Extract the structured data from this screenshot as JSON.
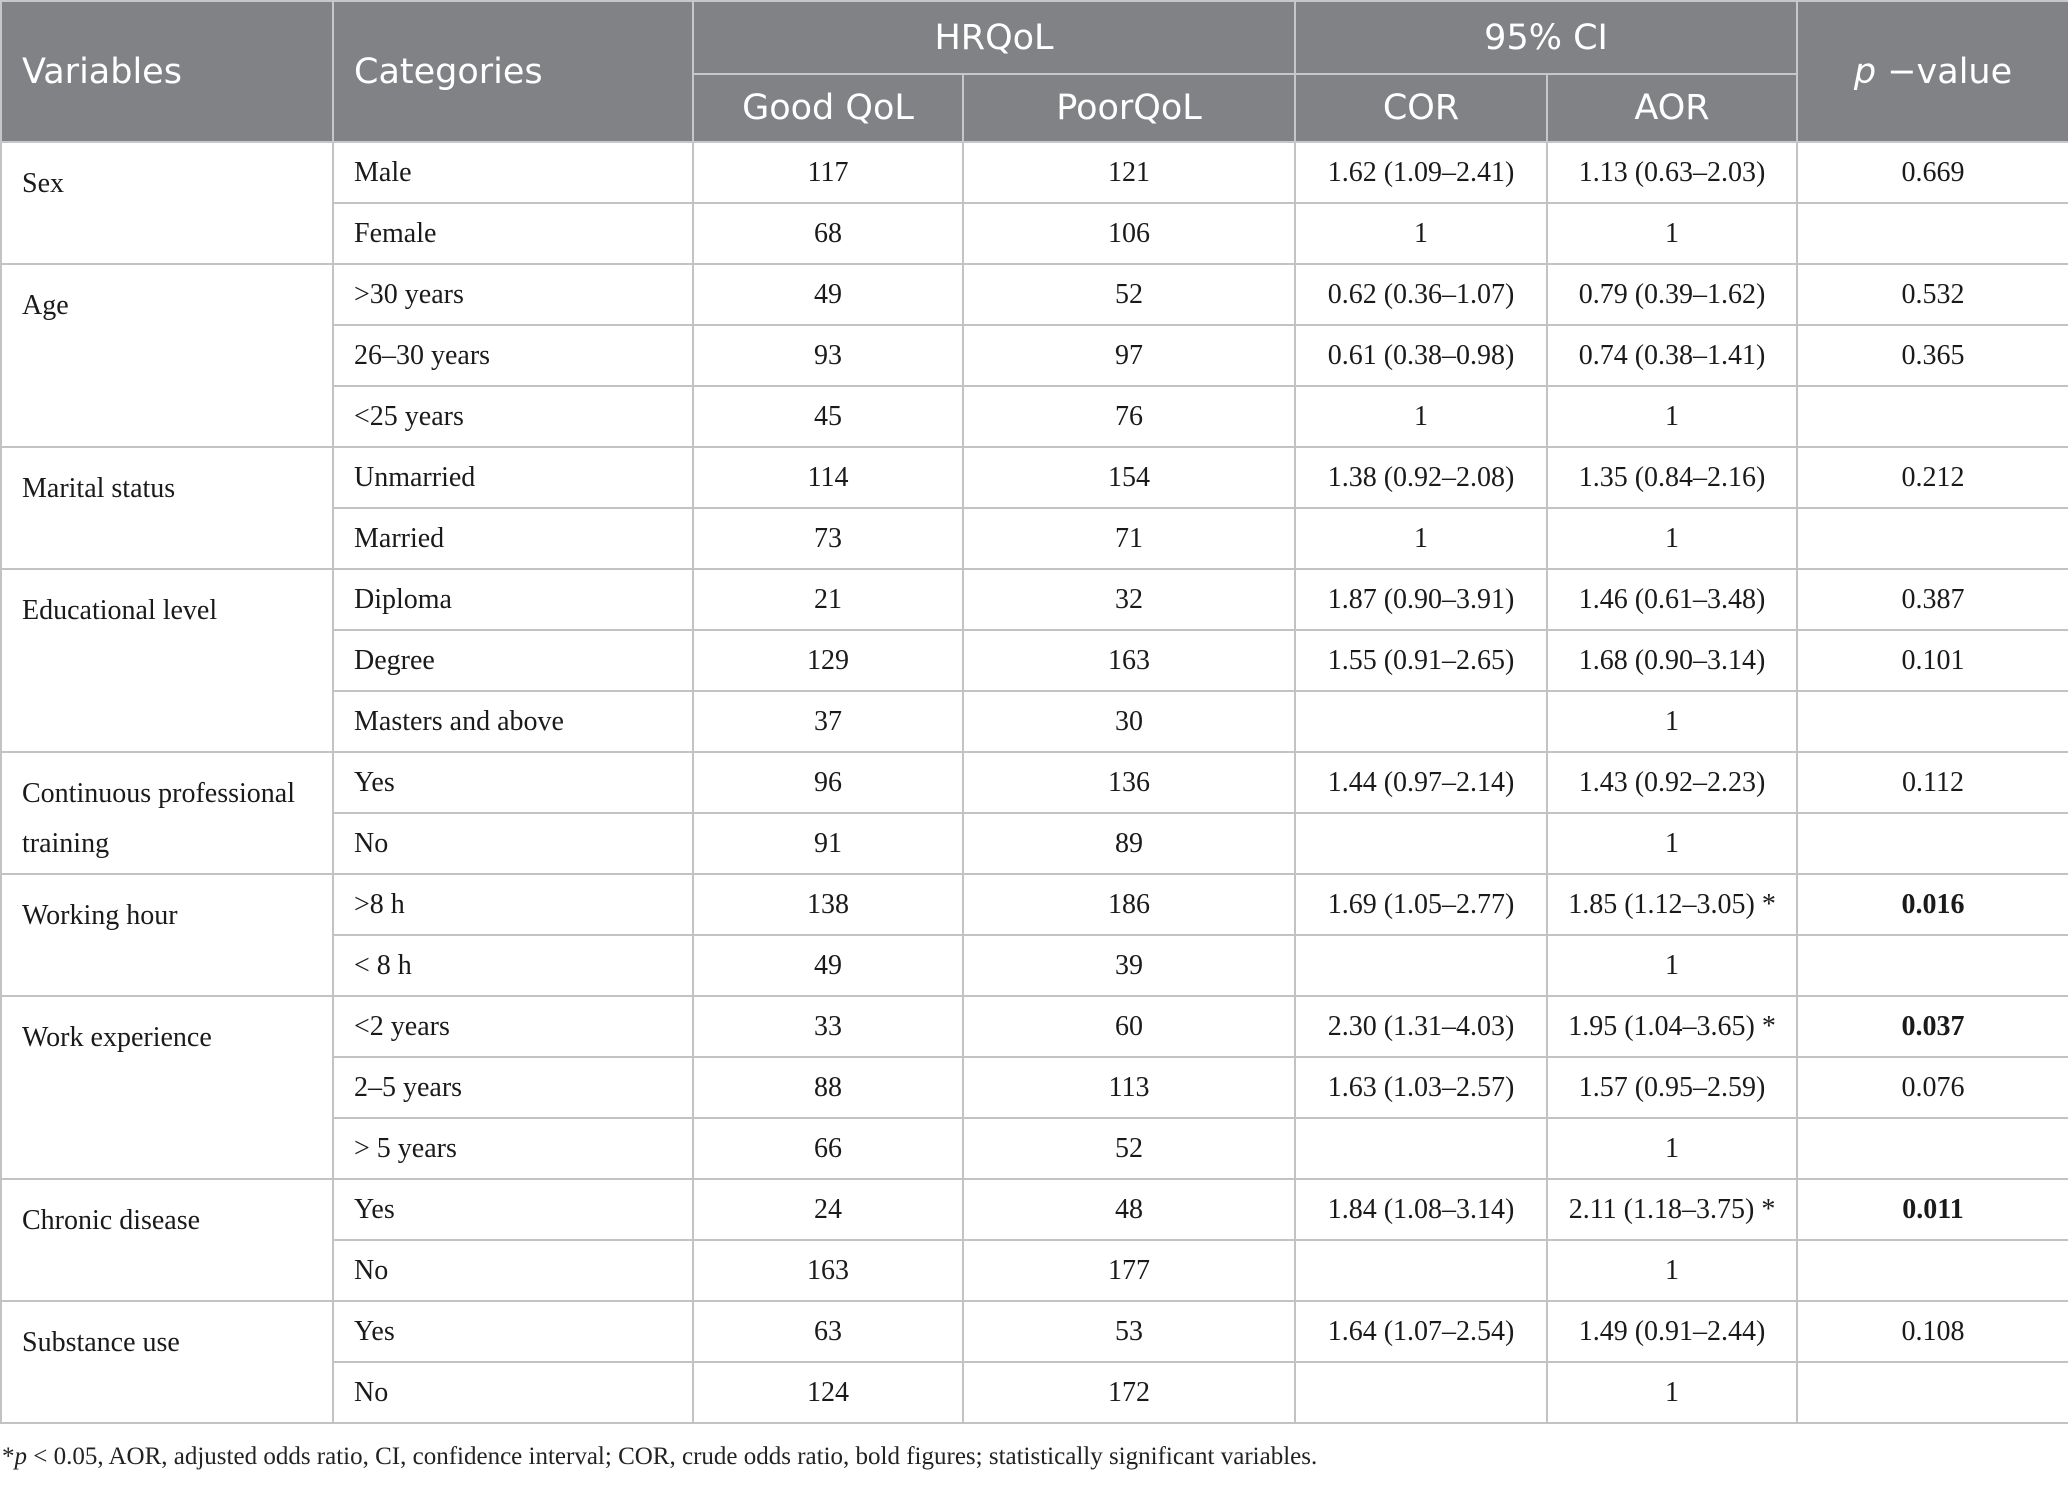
{
  "headers": {
    "variables": "Variables",
    "categories": "Categories",
    "hrqol": "HRQoL",
    "ci": "95% CI",
    "pvalue": "p −value",
    "good": "Good QoL",
    "poor": "PoorQoL",
    "cor": "COR",
    "aor": "AOR"
  },
  "groups": [
    {
      "variable": "Sex",
      "rows": [
        {
          "category": "Male",
          "good": "117",
          "poor": "121",
          "cor": "1.62 (1.09–2.41)",
          "aor": "1.13 (0.63–2.03)",
          "p": "0.669",
          "sig": false
        },
        {
          "category": "Female",
          "good": "68",
          "poor": "106",
          "cor": "1",
          "aor": "1",
          "p": "",
          "sig": false
        }
      ]
    },
    {
      "variable": "Age",
      "rows": [
        {
          "category": ">30 years",
          "good": "49",
          "poor": "52",
          "cor": "0.62 (0.36–1.07)",
          "aor": "0.79 (0.39–1.62)",
          "p": "0.532",
          "sig": false
        },
        {
          "category": "26–30 years",
          "good": "93",
          "poor": "97",
          "cor": "0.61 (0.38–0.98)",
          "aor": "0.74 (0.38–1.41)",
          "p": "0.365",
          "sig": false
        },
        {
          "category": "<25 years",
          "good": "45",
          "poor": "76",
          "cor": "1",
          "aor": "1",
          "p": "",
          "sig": false
        }
      ]
    },
    {
      "variable": "Marital status",
      "rows": [
        {
          "category": "Unmarried",
          "good": "114",
          "poor": "154",
          "cor": "1.38 (0.92–2.08)",
          "aor": "1.35 (0.84–2.16)",
          "p": "0.212",
          "sig": false
        },
        {
          "category": "Married",
          "good": "73",
          "poor": "71",
          "cor": "1",
          "aor": "1",
          "p": "",
          "sig": false
        }
      ]
    },
    {
      "variable": "Educational level",
      "rows": [
        {
          "category": "Diploma",
          "good": "21",
          "poor": "32",
          "cor": "1.87 (0.90–3.91)",
          "aor": "1.46 (0.61–3.48)",
          "p": "0.387",
          "sig": false
        },
        {
          "category": "Degree",
          "good": "129",
          "poor": "163",
          "cor": "1.55 (0.91–2.65)",
          "aor": "1.68 (0.90–3.14)",
          "p": "0.101",
          "sig": false
        },
        {
          "category": "Masters and above",
          "good": "37",
          "poor": "30",
          "cor": "",
          "aor": "1",
          "p": "",
          "sig": false
        }
      ]
    },
    {
      "variable": "Continuous professional training",
      "rows": [
        {
          "category": "Yes",
          "good": "96",
          "poor": "136",
          "cor": "1.44 (0.97–2.14)",
          "aor": "1.43 (0.92–2.23)",
          "p": "0.112",
          "sig": false
        },
        {
          "category": "No",
          "good": "91",
          "poor": "89",
          "cor": "",
          "aor": "1",
          "p": "",
          "sig": false
        }
      ]
    },
    {
      "variable": "Working hour",
      "rows": [
        {
          "category": ">8 h",
          "good": "138",
          "poor": "186",
          "cor": "1.69 (1.05–2.77)",
          "aor": "1.85 (1.12–3.05) *",
          "p": "0.016",
          "sig": true
        },
        {
          "category": "< 8 h",
          "good": "49",
          "poor": "39",
          "cor": "",
          "aor": "1",
          "p": "",
          "sig": false
        }
      ]
    },
    {
      "variable": "Work experience",
      "rows": [
        {
          "category": "<2 years",
          "good": "33",
          "poor": "60",
          "cor": "2.30 (1.31–4.03)",
          "aor": "1.95 (1.04–3.65) *",
          "p": "0.037",
          "sig": true
        },
        {
          "category": "2–5 years",
          "good": "88",
          "poor": "113",
          "cor": "1.63 (1.03–2.57)",
          "aor": "1.57 (0.95–2.59)",
          "p": "0.076",
          "sig": false
        },
        {
          "category": "> 5 years",
          "good": "66",
          "poor": "52",
          "cor": "",
          "aor": "1",
          "p": "",
          "sig": false
        }
      ]
    },
    {
      "variable": "Chronic disease",
      "rows": [
        {
          "category": "Yes",
          "good": "24",
          "poor": "48",
          "cor": "1.84 (1.08–3.14)",
          "aor": "2.11 (1.18–3.75) *",
          "p": "0.011",
          "sig": true
        },
        {
          "category": "No",
          "good": "163",
          "poor": "177",
          "cor": "",
          "aor": "1",
          "p": "",
          "sig": false
        }
      ]
    },
    {
      "variable": "Substance use",
      "rows": [
        {
          "category": "Yes",
          "good": "63",
          "poor": "53",
          "cor": "1.64 (1.07–2.54)",
          "aor": "1.49 (0.91–2.44)",
          "p": "0.108",
          "sig": false
        },
        {
          "category": "No",
          "good": "124",
          "poor": "172",
          "cor": "",
          "aor": "1",
          "p": "",
          "sig": false
        }
      ]
    }
  ],
  "footnote": "*p < 0.05, AOR, adjusted odds ratio, CI, confidence interval; COR, crude odds ratio, bold figures; statistically significant variables."
}
